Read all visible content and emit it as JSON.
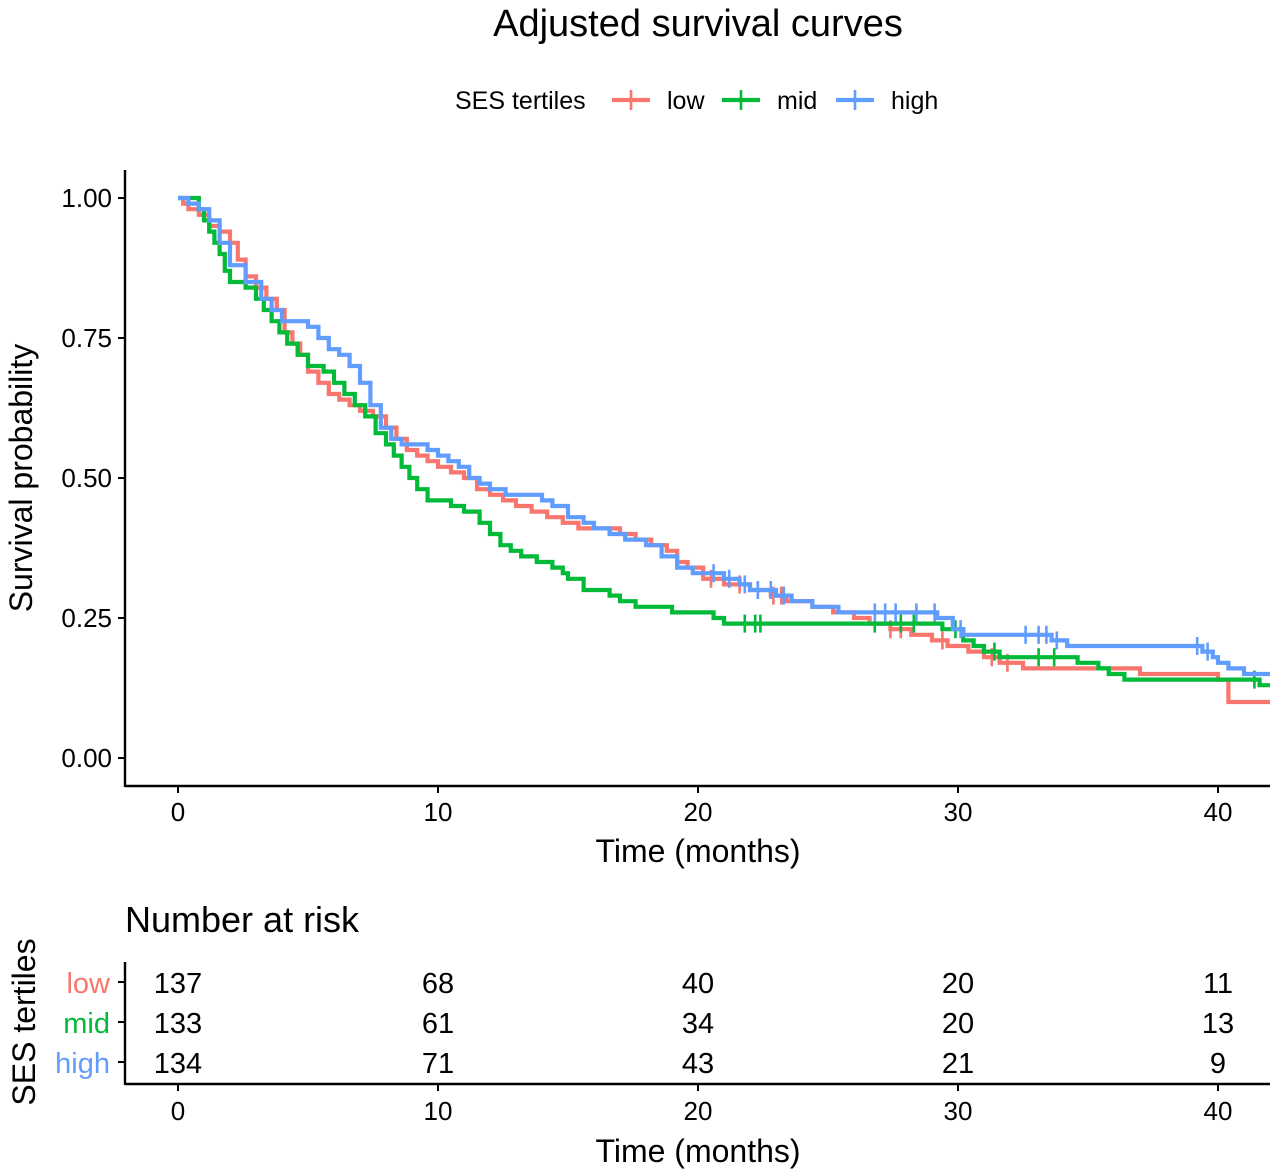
{
  "chart_data": {
    "type": "line",
    "subtype": "kaplan-meier step",
    "title": "Adjusted survival curves",
    "xlabel": "Time (months)",
    "ylabel": "Survival probability",
    "xlim": [
      0,
      42
    ],
    "ylim": [
      0,
      1
    ],
    "x_ticks": [
      0,
      10,
      20,
      30,
      40
    ],
    "y_ticks": [
      "0.00",
      "0.25",
      "0.50",
      "0.75",
      "1.00"
    ],
    "grid": false,
    "legend": {
      "title": "SES tertiles",
      "position": "top",
      "entries": [
        "low",
        "mid",
        "high"
      ]
    },
    "series": [
      {
        "name": "low",
        "color": "#F8766D",
        "points": [
          [
            0,
            1.0
          ],
          [
            0.2,
            0.99
          ],
          [
            0.4,
            0.98
          ],
          [
            0.8,
            0.97
          ],
          [
            1.2,
            0.95
          ],
          [
            1.6,
            0.94
          ],
          [
            2,
            0.92
          ],
          [
            2.3,
            0.89
          ],
          [
            2.6,
            0.86
          ],
          [
            3,
            0.84
          ],
          [
            3.4,
            0.82
          ],
          [
            3.8,
            0.8
          ],
          [
            4.1,
            0.76
          ],
          [
            4.4,
            0.74
          ],
          [
            4.7,
            0.72
          ],
          [
            5,
            0.69
          ],
          [
            5.4,
            0.67
          ],
          [
            5.8,
            0.65
          ],
          [
            6.2,
            0.64
          ],
          [
            6.6,
            0.63
          ],
          [
            7,
            0.62
          ],
          [
            7.5,
            0.61
          ],
          [
            8,
            0.59
          ],
          [
            8.4,
            0.57
          ],
          [
            8.8,
            0.55
          ],
          [
            9.2,
            0.54
          ],
          [
            9.6,
            0.53
          ],
          [
            10,
            0.52
          ],
          [
            10.5,
            0.51
          ],
          [
            11,
            0.5
          ],
          [
            11.5,
            0.48
          ],
          [
            12,
            0.47
          ],
          [
            12.5,
            0.46
          ],
          [
            13,
            0.45
          ],
          [
            13.6,
            0.44
          ],
          [
            14.2,
            0.43
          ],
          [
            14.8,
            0.42
          ],
          [
            15.4,
            0.41
          ],
          [
            17,
            0.4
          ],
          [
            17.6,
            0.39
          ],
          [
            18.2,
            0.38
          ],
          [
            18.8,
            0.37
          ],
          [
            19.2,
            0.35
          ],
          [
            19.6,
            0.34
          ],
          [
            20.2,
            0.32
          ],
          [
            21,
            0.31
          ],
          [
            22,
            0.3
          ],
          [
            22.8,
            0.29
          ],
          [
            23.4,
            0.28
          ],
          [
            24.4,
            0.27
          ],
          [
            25.2,
            0.26
          ],
          [
            26,
            0.25
          ],
          [
            26.6,
            0.24
          ],
          [
            27.4,
            0.23
          ],
          [
            28.2,
            0.22
          ],
          [
            29,
            0.21
          ],
          [
            29.6,
            0.2
          ],
          [
            30.4,
            0.19
          ],
          [
            31,
            0.18
          ],
          [
            31.6,
            0.17
          ],
          [
            32.5,
            0.16
          ],
          [
            37,
            0.15
          ],
          [
            40,
            0.14
          ],
          [
            40.4,
            0.1
          ],
          [
            42,
            0.1
          ]
        ],
        "censored_x": [
          20.5,
          21.6,
          22.3,
          22.9,
          23.2,
          27.4,
          27.8,
          29.4,
          31.3,
          31.9
        ]
      },
      {
        "name": "mid",
        "color": "#00BA38",
        "points": [
          [
            0,
            1.0
          ],
          [
            0.6,
            1.0
          ],
          [
            0.8,
            0.98
          ],
          [
            1,
            0.96
          ],
          [
            1.2,
            0.94
          ],
          [
            1.4,
            0.92
          ],
          [
            1.6,
            0.9
          ],
          [
            1.8,
            0.87
          ],
          [
            2,
            0.85
          ],
          [
            2.6,
            0.84
          ],
          [
            3,
            0.82
          ],
          [
            3.3,
            0.8
          ],
          [
            3.6,
            0.78
          ],
          [
            3.9,
            0.76
          ],
          [
            4.2,
            0.74
          ],
          [
            4.6,
            0.72
          ],
          [
            5,
            0.7
          ],
          [
            5.6,
            0.69
          ],
          [
            6,
            0.67
          ],
          [
            6.4,
            0.65
          ],
          [
            6.8,
            0.63
          ],
          [
            7.2,
            0.61
          ],
          [
            7.6,
            0.58
          ],
          [
            8,
            0.56
          ],
          [
            8.3,
            0.54
          ],
          [
            8.6,
            0.52
          ],
          [
            8.9,
            0.5
          ],
          [
            9.2,
            0.48
          ],
          [
            9.6,
            0.46
          ],
          [
            10.5,
            0.45
          ],
          [
            11,
            0.44
          ],
          [
            11.6,
            0.42
          ],
          [
            12,
            0.4
          ],
          [
            12.4,
            0.38
          ],
          [
            12.8,
            0.37
          ],
          [
            13.2,
            0.36
          ],
          [
            13.8,
            0.35
          ],
          [
            14.4,
            0.34
          ],
          [
            14.8,
            0.33
          ],
          [
            15,
            0.32
          ],
          [
            15.6,
            0.3
          ],
          [
            16.6,
            0.29
          ],
          [
            17,
            0.28
          ],
          [
            17.6,
            0.27
          ],
          [
            19,
            0.26
          ],
          [
            20.6,
            0.25
          ],
          [
            21,
            0.24
          ],
          [
            29.4,
            0.23
          ],
          [
            30.2,
            0.21
          ],
          [
            30.6,
            0.2
          ],
          [
            31,
            0.19
          ],
          [
            31.6,
            0.18
          ],
          [
            34.6,
            0.17
          ],
          [
            35.4,
            0.16
          ],
          [
            35.8,
            0.15
          ],
          [
            36.4,
            0.14
          ],
          [
            41.2,
            0.14
          ],
          [
            41.6,
            0.13
          ],
          [
            42,
            0.13
          ]
        ],
        "censored_x": [
          21.8,
          22.2,
          22.4,
          26.8,
          27.8,
          28.3,
          29.9,
          31.4,
          33.1,
          33.7,
          41.4
        ]
      },
      {
        "name": "high",
        "color": "#619CFF",
        "points": [
          [
            0,
            1.0
          ],
          [
            0.4,
            0.99
          ],
          [
            0.8,
            0.98
          ],
          [
            1.2,
            0.96
          ],
          [
            1.6,
            0.92
          ],
          [
            2,
            0.88
          ],
          [
            2.6,
            0.85
          ],
          [
            3.2,
            0.82
          ],
          [
            3.6,
            0.8
          ],
          [
            4,
            0.78
          ],
          [
            5,
            0.77
          ],
          [
            5.4,
            0.75
          ],
          [
            5.8,
            0.73
          ],
          [
            6.2,
            0.72
          ],
          [
            6.6,
            0.7
          ],
          [
            7,
            0.67
          ],
          [
            7.4,
            0.63
          ],
          [
            7.8,
            0.59
          ],
          [
            8.2,
            0.57
          ],
          [
            8.6,
            0.56
          ],
          [
            9.6,
            0.55
          ],
          [
            10,
            0.54
          ],
          [
            10.4,
            0.53
          ],
          [
            10.8,
            0.52
          ],
          [
            11.2,
            0.5
          ],
          [
            11.6,
            0.49
          ],
          [
            12,
            0.48
          ],
          [
            12.6,
            0.47
          ],
          [
            13.6,
            0.47
          ],
          [
            14,
            0.46
          ],
          [
            14.4,
            0.45
          ],
          [
            15,
            0.43
          ],
          [
            15.6,
            0.42
          ],
          [
            16,
            0.41
          ],
          [
            16.6,
            0.4
          ],
          [
            17.2,
            0.39
          ],
          [
            18,
            0.38
          ],
          [
            18.6,
            0.36
          ],
          [
            19.2,
            0.34
          ],
          [
            19.8,
            0.33
          ],
          [
            21,
            0.32
          ],
          [
            21.6,
            0.31
          ],
          [
            22,
            0.3
          ],
          [
            23,
            0.29
          ],
          [
            23.6,
            0.28
          ],
          [
            24.4,
            0.27
          ],
          [
            25.4,
            0.26
          ],
          [
            29.2,
            0.25
          ],
          [
            29.8,
            0.23
          ],
          [
            30.2,
            0.22
          ],
          [
            33.6,
            0.21
          ],
          [
            34.2,
            0.2
          ],
          [
            39.4,
            0.19
          ],
          [
            39.8,
            0.18
          ],
          [
            40,
            0.17
          ],
          [
            40.4,
            0.16
          ],
          [
            41,
            0.15
          ],
          [
            42,
            0.15
          ]
        ],
        "censored_x": [
          20.6,
          21.2,
          21.8,
          22.3,
          22.8,
          23.3,
          26.8,
          27.2,
          27.6,
          28.4,
          29.1,
          30.1,
          32.6,
          33.1,
          33.4,
          33.8,
          39.2,
          39.6
        ]
      }
    ],
    "risk_table": {
      "title": "Number at risk",
      "ylabel": "SES tertiles",
      "xlabel": "Time (months)",
      "times": [
        0,
        10,
        20,
        30,
        40
      ],
      "rows": [
        {
          "label": "low",
          "color": "#F8766D",
          "counts": [
            "137",
            "68",
            "40",
            "20",
            "11"
          ]
        },
        {
          "label": "mid",
          "color": "#00BA38",
          "counts": [
            "133",
            "61",
            "34",
            "20",
            "13"
          ]
        },
        {
          "label": "high",
          "color": "#619CFF",
          "counts": [
            "134",
            "71",
            "43",
            "21",
            "9"
          ]
        }
      ]
    }
  }
}
